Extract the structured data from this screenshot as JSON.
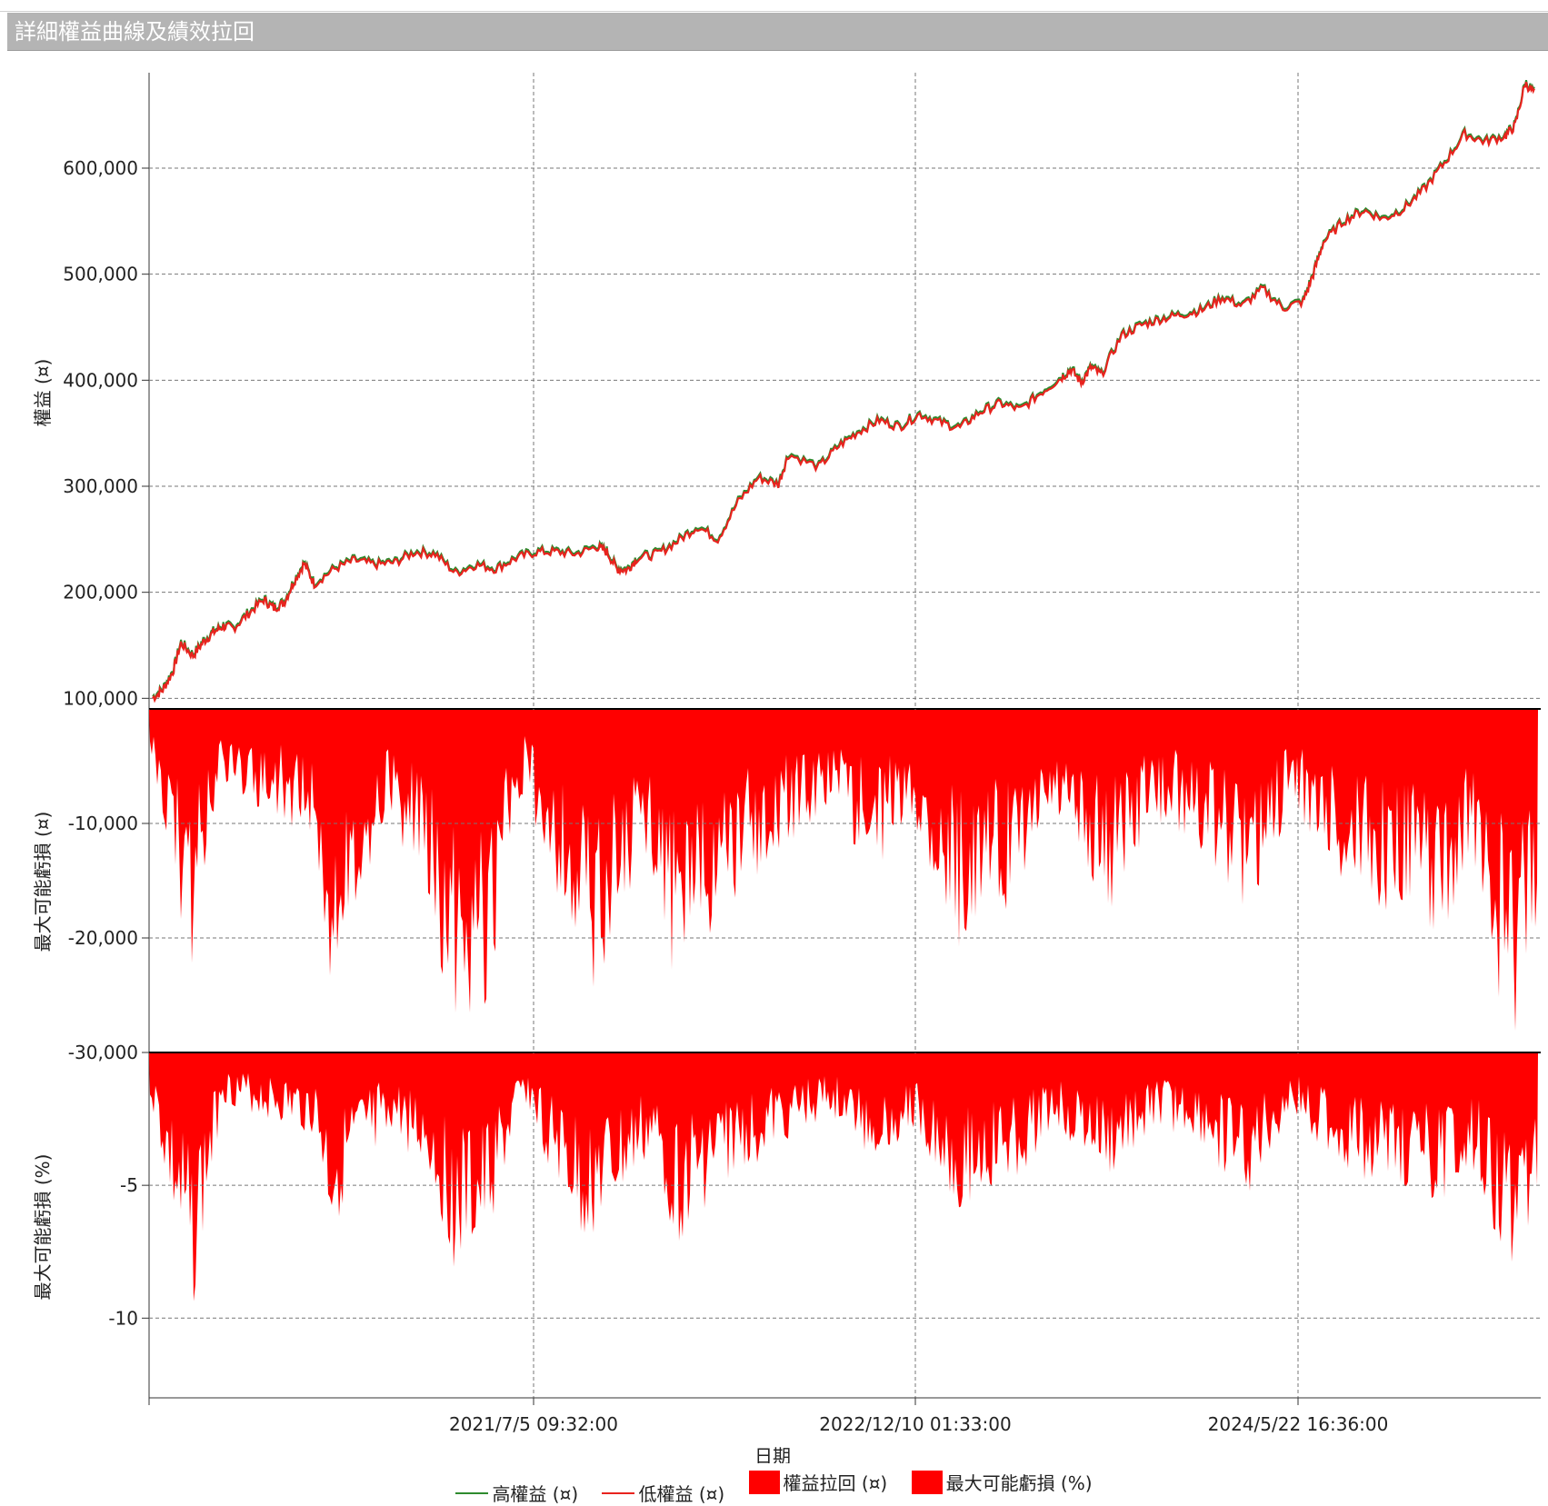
{
  "window": {
    "title": "詳細權益曲線及績效拉回"
  },
  "legend": [
    {
      "label": "高權益 (¤)",
      "color": "#2e8b2e",
      "kind": "line"
    },
    {
      "label": "低權益 (¤)",
      "color": "#e8231e",
      "kind": "line"
    },
    {
      "label": "權益拉回 (¤)",
      "color": "#ff0000",
      "kind": "box"
    },
    {
      "label": "最大可能虧損 (%)",
      "color": "#ff0000",
      "kind": "box"
    }
  ],
  "chart_data": [
    {
      "type": "line",
      "ylabel": "權益 (¤)",
      "ylim": [
        90000,
        690000
      ],
      "yticks": [
        "100,000",
        "200,000",
        "300,000",
        "400,000",
        "500,000",
        "600,000"
      ],
      "series": [
        {
          "name": "高權益 (¤)",
          "color": "#2e8b2e"
        },
        {
          "name": "低權益 (¤)",
          "color": "#e8231e"
        }
      ],
      "points_frac_time_value": [
        [
          0.0,
          100000
        ],
        [
          0.01,
          108000
        ],
        [
          0.02,
          125000
        ],
        [
          0.028,
          152000
        ],
        [
          0.04,
          140000
        ],
        [
          0.05,
          153000
        ],
        [
          0.06,
          162000
        ],
        [
          0.07,
          168000
        ],
        [
          0.08,
          166000
        ],
        [
          0.095,
          180000
        ],
        [
          0.11,
          193000
        ],
        [
          0.12,
          185000
        ],
        [
          0.13,
          190000
        ],
        [
          0.14,
          210000
        ],
        [
          0.15,
          227000
        ],
        [
          0.16,
          208000
        ],
        [
          0.18,
          222000
        ],
        [
          0.2,
          230000
        ],
        [
          0.22,
          226000
        ],
        [
          0.24,
          228000
        ],
        [
          0.26,
          238000
        ],
        [
          0.28,
          236000
        ],
        [
          0.3,
          218000
        ],
        [
          0.32,
          226000
        ],
        [
          0.34,
          222000
        ],
        [
          0.36,
          232000
        ],
        [
          0.38,
          238000
        ],
        [
          0.4,
          238000
        ],
        [
          0.42,
          236000
        ],
        [
          0.44,
          243000
        ],
        [
          0.45,
          238000
        ],
        [
          0.46,
          222000
        ],
        [
          0.47,
          221000
        ],
        [
          0.48,
          232000
        ],
        [
          0.5,
          236000
        ],
        [
          0.52,
          248000
        ],
        [
          0.54,
          262000
        ],
        [
          0.56,
          250000
        ],
        [
          0.58,
          285000
        ],
        [
          0.6,
          308000
        ],
        [
          0.62,
          302000
        ],
        [
          0.63,
          330000
        ],
        [
          0.66,
          318000
        ],
        [
          0.68,
          338000
        ],
        [
          0.7,
          352000
        ],
        [
          0.72,
          362000
        ],
        [
          0.74,
          356000
        ],
        [
          0.76,
          368000
        ],
        [
          0.78,
          360000
        ],
        [
          0.8,
          355000
        ],
        [
          0.82,
          370000
        ],
        [
          0.84,
          378000
        ],
        [
          0.86,
          372000
        ],
        [
          0.88,
          388000
        ],
        [
          0.9,
          402000
        ],
        [
          0.91,
          410000
        ],
        [
          0.92,
          398000
        ],
        [
          0.93,
          412000
        ],
        [
          0.94,
          405000
        ],
        [
          0.96,
          442000
        ],
        [
          0.98,
          452000
        ],
        [
          1.0,
          458000
        ],
        [
          1.02,
          462000
        ],
        [
          1.04,
          466000
        ],
        [
          1.06,
          478000
        ],
        [
          1.08,
          470000
        ],
        [
          1.1,
          486000
        ],
        [
          1.12,
          468000
        ],
        [
          1.14,
          474000
        ],
        [
          1.15,
          500000
        ],
        [
          1.16,
          530000
        ],
        [
          1.18,
          550000
        ],
        [
          1.2,
          560000
        ],
        [
          1.22,
          552000
        ],
        [
          1.24,
          562000
        ],
        [
          1.26,
          580000
        ],
        [
          1.28,
          605000
        ],
        [
          1.3,
          632000
        ],
        [
          1.32,
          625000
        ],
        [
          1.34,
          630000
        ],
        [
          1.35,
          640000
        ],
        [
          1.36,
          680000
        ],
        [
          1.37,
          670000
        ]
      ]
    },
    {
      "type": "area",
      "ylabel": "最大可能虧損 (¤)",
      "ylim": [
        -30000,
        0
      ],
      "yticks": [
        "-10,000",
        "-20,000",
        "-30,000"
      ],
      "series": [
        {
          "name": "權益拉回 (¤)",
          "color": "#ff0000"
        }
      ]
    },
    {
      "type": "area",
      "ylabel": "最大可能虧損 (%)",
      "ylim": [
        -13,
        0
      ],
      "yticks": [
        "-5",
        "-10"
      ],
      "series": [
        {
          "name": "最大可能虧損 (%)",
          "color": "#ff0000"
        }
      ]
    }
  ],
  "xaxis": {
    "title": "日期",
    "ticks": [
      "2021/7/5 09:32:00",
      "2022/12/10 01:33:00",
      "2024/5/22 16:36:00"
    ]
  }
}
